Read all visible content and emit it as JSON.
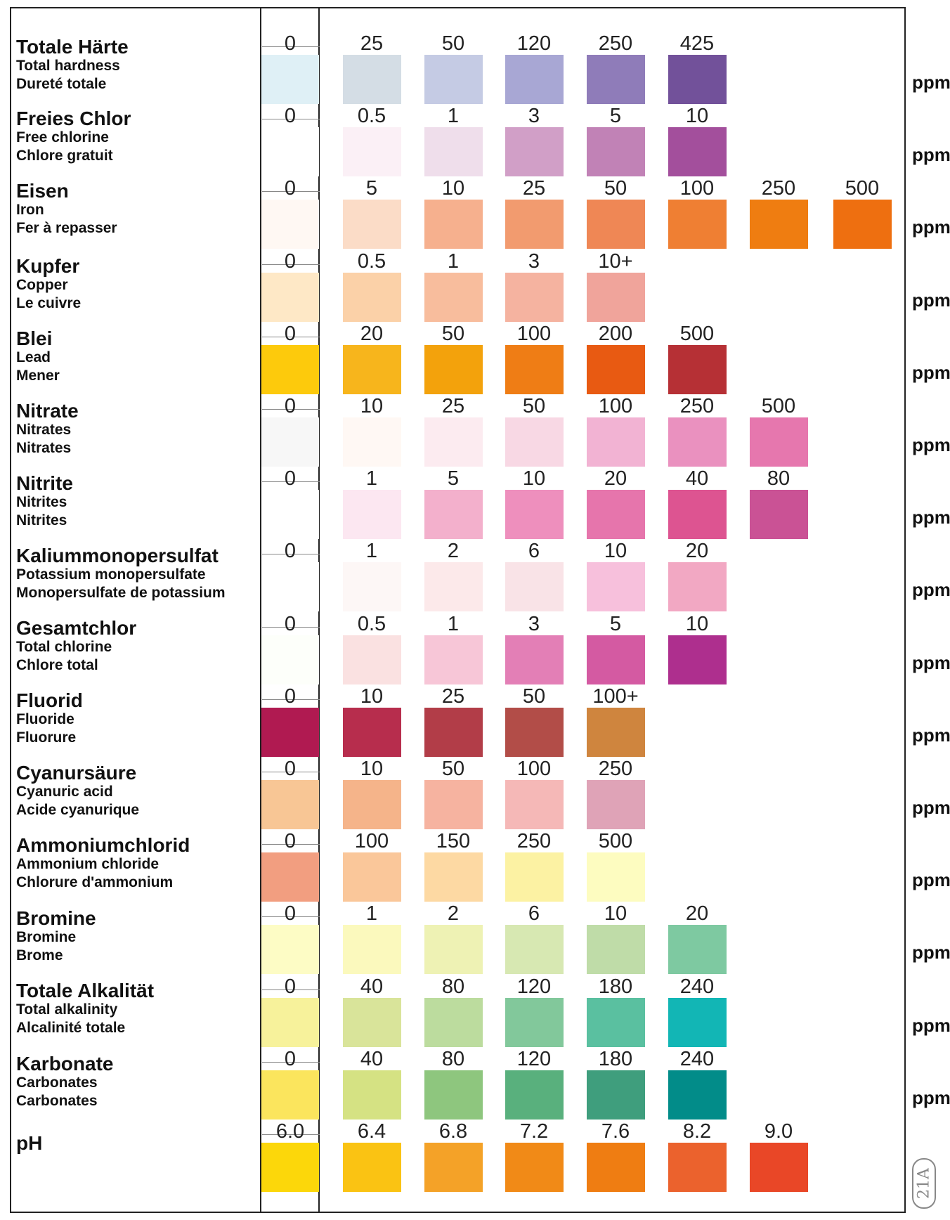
{
  "chart_data": {
    "type": "table",
    "unit": "ppm",
    "code": "21A",
    "rows": [
      {
        "de": "Totale Härte",
        "en": "Total hardness",
        "fr": "Dureté totale",
        "values": [
          "0",
          "25",
          "50",
          "120",
          "250",
          "425"
        ],
        "colors": [
          "#dff0f6",
          "#d4dde5",
          "#c5cbe4",
          "#a8a7d4",
          "#8f7cb9",
          "#72519a"
        ]
      },
      {
        "de": "Freies Chlor",
        "en": "Free chlorine",
        "fr": "Chlore gratuit",
        "values": [
          "0",
          "0.5",
          "1",
          "3",
          "5",
          "10"
        ],
        "colors": [
          "#ffffff",
          "#fbf0f6",
          "#efdeeb",
          "#d19fc7",
          "#c182b6",
          "#a34f9c"
        ]
      },
      {
        "de": "Eisen",
        "en": "Iron",
        "fr": "Fer à repasser",
        "values": [
          "0",
          "5",
          "10",
          "25",
          "50",
          "100",
          "250",
          "500"
        ],
        "colors": [
          "#fff8f3",
          "#fbdcc7",
          "#f6b08e",
          "#f29b6f",
          "#ef8755",
          "#ef7f33",
          "#ef7d11",
          "#ee6f10"
        ]
      },
      {
        "de": "Kupfer",
        "en": "Copper",
        "fr": "Le cuivre",
        "values": [
          "0",
          "0.5",
          "1",
          "3",
          "10+"
        ],
        "colors": [
          "#fee8c6",
          "#fbd1a8",
          "#f8bd9d",
          "#f5b3a0",
          "#f0a49b"
        ]
      },
      {
        "de": "Blei",
        "en": "Lead",
        "fr": "Mener",
        "values": [
          "0",
          "20",
          "50",
          "100",
          "200",
          "500"
        ],
        "colors": [
          "#fdca0c",
          "#f7b51c",
          "#f3a20c",
          "#ef7d15",
          "#e85a12",
          "#b63035"
        ]
      },
      {
        "de": "Nitrate",
        "en": "Nitrates",
        "fr": "Nitrates",
        "values": [
          "0",
          "10",
          "25",
          "50",
          "100",
          "250",
          "500"
        ],
        "colors": [
          "#f7f7f7",
          "#fff8f4",
          "#fcebf0",
          "#f8d8e4",
          "#f2b3d3",
          "#ea91bf",
          "#e677ae"
        ]
      },
      {
        "de": "Nitrite",
        "en": "Nitrites",
        "fr": "Nitrites",
        "values": [
          "0",
          "1",
          "5",
          "10",
          "20",
          "40",
          "80"
        ],
        "colors": [
          "#ffffff",
          "#fce7f1",
          "#f3b0cc",
          "#ee8fbd",
          "#e675ac",
          "#dd5491",
          "#ca5295"
        ]
      },
      {
        "de": "Kaliummonopersulfat",
        "en": "Potassium monopersulfate",
        "fr": "Monopersulfate de potassium",
        "values": [
          "0",
          "1",
          "2",
          "6",
          "10",
          "20"
        ],
        "colors": [
          "#ffffff",
          "#fdf7f6",
          "#fce9ea",
          "#f9e3e7",
          "#f7c0dc",
          "#f2a8c3"
        ]
      },
      {
        "de": "Gesamtchlor",
        "en": "Total chlorine",
        "fr": "Chlore total",
        "values": [
          "0",
          "0.5",
          "1",
          "3",
          "5",
          "10"
        ],
        "colors": [
          "#fdfffa",
          "#fae1e1",
          "#f7c6d7",
          "#e37fb6",
          "#d45aa2",
          "#ae2f8e"
        ]
      },
      {
        "de": "Fluorid",
        "en": "Fluoride",
        "fr": "Fluorure",
        "values": [
          "0",
          "10",
          "25",
          "50",
          "100+"
        ],
        "colors": [
          "#b01a51",
          "#b72d4d",
          "#b23d48",
          "#b24d48",
          "#cf853e"
        ]
      },
      {
        "de": "Cyanursäure",
        "en": "Cyanuric acid",
        "fr": "Acide cyanurique",
        "values": [
          "0",
          "10",
          "50",
          "100",
          "250"
        ],
        "colors": [
          "#f8c695",
          "#f5b48a",
          "#f6b3a0",
          "#f5b8b7",
          "#dfa3b7"
        ]
      },
      {
        "de": "Ammoniumchlorid",
        "en": "Ammonium chloride",
        "fr": "Chlorure d'ammonium",
        "values": [
          "0",
          "100",
          "150",
          "250",
          "500"
        ],
        "colors": [
          "#f29e80",
          "#fac79a",
          "#fdd9a3",
          "#fcf2a3",
          "#fdfcc0"
        ]
      },
      {
        "de": "Bromine",
        "en": "Bromine",
        "fr": "Brome",
        "values": [
          "0",
          "1",
          "2",
          "6",
          "10",
          "20"
        ],
        "colors": [
          "#fdfcc5",
          "#fbf9bd",
          "#eef2b4",
          "#d7e8b2",
          "#bfdca8",
          "#7ec9a1"
        ]
      },
      {
        "de": "Totale Alkalität",
        "en": "Total alkalinity",
        "fr": "Alcalinité totale",
        "values": [
          "0",
          "40",
          "80",
          "120",
          "180",
          "240"
        ],
        "colors": [
          "#f7f29b",
          "#d9e49a",
          "#bcdc9e",
          "#82c89b",
          "#5ac0a0",
          "#12b6b5"
        ]
      },
      {
        "de": "Karbonate",
        "en": "Carbonates",
        "fr": "Carbonates",
        "values": [
          "0",
          "40",
          "80",
          "120",
          "180",
          "240"
        ],
        "colors": [
          "#fbe55d",
          "#d5e283",
          "#8ec67e",
          "#59b07d",
          "#3f9e7d",
          "#028c89"
        ]
      },
      {
        "de": "pH",
        "en": "",
        "fr": "",
        "values": [
          "6.0",
          "6.4",
          "6.8",
          "7.2",
          "7.6",
          "8.2",
          "9.0"
        ],
        "colors": [
          "#fcd70a",
          "#fac313",
          "#f4a228",
          "#f18a17",
          "#ef7d12",
          "#eb622d",
          "#e94727"
        ]
      }
    ]
  }
}
